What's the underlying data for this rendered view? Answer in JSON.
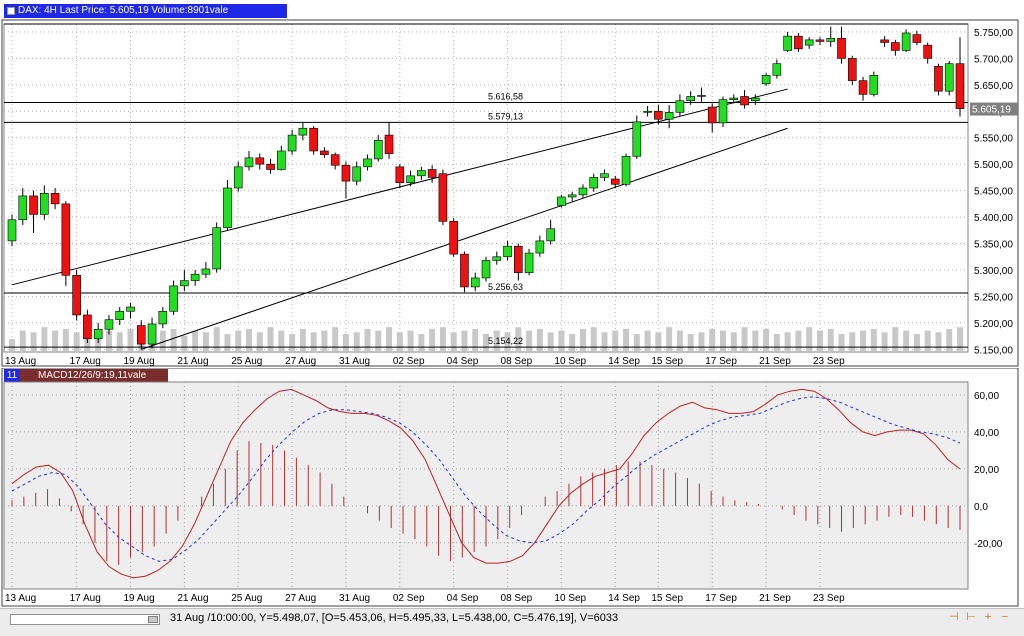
{
  "price_panel": {
    "title": "DAX: 4H Last Price: 5.605,19 Volume:8901vale",
    "last_price_label": "5.605,19",
    "level_labels": [
      "5.616,58",
      "5.579,13",
      "5.256,63",
      "5.154,22"
    ]
  },
  "macd_panel": {
    "title": "MACD12/26/9:19,11vale",
    "tab_label": "11"
  },
  "status_bar": {
    "text": "31 Aug /10:00:00, Y=5.498,07, [O=5.453,06, H=5.495,33, L=5.438,00, C=5.476,19], V=6033",
    "nav_glyphs": [
      "⊣",
      "⊢",
      "+",
      "−"
    ]
  },
  "colors": {
    "up": "#22dd22",
    "down": "#ee1111",
    "title_bar": "#1e28e6",
    "macd_tab": "#7a2d2d",
    "macd_line": "#c02020",
    "signal_line": "#2030e0",
    "plot_bg": "#eeeeee"
  },
  "chart_data": [
    {
      "type": "candlestick",
      "title": "DAX: 4H Last Price: 5.605,19 Volume:8901vale",
      "x_tick_labels": [
        "13 Aug",
        "17 Aug",
        "19 Aug",
        "21 Aug",
        "25 Aug",
        "27 Aug",
        "31 Aug",
        "02 Sep",
        "04 Sep",
        "08 Sep",
        "10 Sep",
        "14 Sep",
        "15 Sep",
        "17 Sep",
        "21 Sep",
        "23 Sep"
      ],
      "y_tick_labels": [
        "5.750,00",
        "5.700,00",
        "5.650,00",
        "5.600,00",
        "5.550,00",
        "5.500,00",
        "5.450,00",
        "5.400,00",
        "5.350,00",
        "5.300,00",
        "5.250,00",
        "5.200,00",
        "5.150,00"
      ],
      "ylim": [
        5145,
        5765
      ],
      "last_price": 5605.19,
      "horizontal_levels": [
        5616.58,
        5579.13,
        5256.63,
        5154.22
      ],
      "trendlines": [
        {
          "from": [
            0,
            5272
          ],
          "to": [
            72,
            5642
          ]
        },
        {
          "from": [
            12,
            5150
          ],
          "to": [
            72,
            5568
          ]
        }
      ],
      "candles": [
        {
          "o": 5355,
          "c": 5395,
          "h": 5405,
          "l": 5345
        },
        {
          "o": 5395,
          "c": 5440,
          "h": 5455,
          "l": 5385
        },
        {
          "o": 5440,
          "c": 5405,
          "h": 5450,
          "l": 5370
        },
        {
          "o": 5405,
          "c": 5445,
          "h": 5460,
          "l": 5395
        },
        {
          "o": 5445,
          "c": 5425,
          "h": 5455,
          "l": 5415
        },
        {
          "o": 5425,
          "c": 5290,
          "h": 5430,
          "l": 5270
        },
        {
          "o": 5290,
          "c": 5215,
          "h": 5300,
          "l": 5205
        },
        {
          "o": 5215,
          "c": 5170,
          "h": 5225,
          "l": 5162
        },
        {
          "o": 5170,
          "c": 5188,
          "h": 5200,
          "l": 5162
        },
        {
          "o": 5188,
          "c": 5206,
          "h": 5215,
          "l": 5178
        },
        {
          "o": 5206,
          "c": 5222,
          "h": 5230,
          "l": 5196
        },
        {
          "o": 5222,
          "c": 5230,
          "h": 5238,
          "l": 5208
        },
        {
          "o": 5195,
          "c": 5160,
          "h": 5205,
          "l": 5150
        },
        {
          "o": 5160,
          "c": 5198,
          "h": 5210,
          "l": 5152
        },
        {
          "o": 5198,
          "c": 5222,
          "h": 5230,
          "l": 5190
        },
        {
          "o": 5222,
          "c": 5270,
          "h": 5280,
          "l": 5215
        },
        {
          "o": 5270,
          "c": 5280,
          "h": 5300,
          "l": 5260
        },
        {
          "o": 5280,
          "c": 5292,
          "h": 5300,
          "l": 5270
        },
        {
          "o": 5292,
          "c": 5302,
          "h": 5315,
          "l": 5285
        },
        {
          "o": 5302,
          "c": 5380,
          "h": 5390,
          "l": 5295
        },
        {
          "o": 5380,
          "c": 5455,
          "h": 5470,
          "l": 5375
        },
        {
          "o": 5455,
          "c": 5495,
          "h": 5505,
          "l": 5448
        },
        {
          "o": 5495,
          "c": 5512,
          "h": 5525,
          "l": 5488
        },
        {
          "o": 5512,
          "c": 5500,
          "h": 5520,
          "l": 5490
        },
        {
          "o": 5500,
          "c": 5490,
          "h": 5510,
          "l": 5482
        },
        {
          "o": 5490,
          "c": 5525,
          "h": 5535,
          "l": 5488
        },
        {
          "o": 5525,
          "c": 5555,
          "h": 5565,
          "l": 5518
        },
        {
          "o": 5555,
          "c": 5568,
          "h": 5578,
          "l": 5545
        },
        {
          "o": 5568,
          "c": 5525,
          "h": 5572,
          "l": 5518
        },
        {
          "o": 5525,
          "c": 5518,
          "h": 5532,
          "l": 5512
        },
        {
          "o": 5518,
          "c": 5498,
          "h": 5522,
          "l": 5490
        },
        {
          "o": 5498,
          "c": 5468,
          "h": 5505,
          "l": 5435
        },
        {
          "o": 5468,
          "c": 5495,
          "h": 5505,
          "l": 5460
        },
        {
          "o": 5495,
          "c": 5510,
          "h": 5518,
          "l": 5488
        },
        {
          "o": 5510,
          "c": 5545,
          "h": 5555,
          "l": 5505
        },
        {
          "o": 5555,
          "c": 5520,
          "h": 5580,
          "l": 5510
        },
        {
          "o": 5495,
          "c": 5465,
          "h": 5500,
          "l": 5455
        },
        {
          "o": 5465,
          "c": 5478,
          "h": 5488,
          "l": 5458
        },
        {
          "o": 5478,
          "c": 5488,
          "h": 5495,
          "l": 5470
        },
        {
          "o": 5490,
          "c": 5475,
          "h": 5498,
          "l": 5465
        },
        {
          "o": 5482,
          "c": 5392,
          "h": 5490,
          "l": 5385
        },
        {
          "o": 5392,
          "c": 5330,
          "h": 5398,
          "l": 5325
        },
        {
          "o": 5330,
          "c": 5268,
          "h": 5335,
          "l": 5258
        },
        {
          "o": 5268,
          "c": 5285,
          "h": 5295,
          "l": 5260
        },
        {
          "o": 5285,
          "c": 5318,
          "h": 5325,
          "l": 5278
        },
        {
          "o": 5318,
          "c": 5325,
          "h": 5335,
          "l": 5310
        },
        {
          "o": 5325,
          "c": 5345,
          "h": 5355,
          "l": 5318
        },
        {
          "o": 5345,
          "c": 5295,
          "h": 5350,
          "l": 5280
        },
        {
          "o": 5295,
          "c": 5332,
          "h": 5340,
          "l": 5290
        },
        {
          "o": 5332,
          "c": 5355,
          "h": 5365,
          "l": 5325
        },
        {
          "o": 5355,
          "c": 5378,
          "h": 5395,
          "l": 5348
        },
        {
          "o": 5422,
          "c": 5438,
          "h": 5442,
          "l": 5418
        },
        {
          "o": 5438,
          "c": 5442,
          "h": 5448,
          "l": 5430
        },
        {
          "o": 5442,
          "c": 5455,
          "h": 5462,
          "l": 5436
        },
        {
          "o": 5455,
          "c": 5475,
          "h": 5482,
          "l": 5448
        },
        {
          "o": 5475,
          "c": 5482,
          "h": 5490,
          "l": 5468
        },
        {
          "o": 5472,
          "c": 5462,
          "h": 5478,
          "l": 5455
        },
        {
          "o": 5462,
          "c": 5515,
          "h": 5520,
          "l": 5458
        },
        {
          "o": 5515,
          "c": 5580,
          "h": 5592,
          "l": 5510
        },
        {
          "o": 5598,
          "c": 5600,
          "h": 5610,
          "l": 5590
        },
        {
          "o": 5600,
          "c": 5585,
          "h": 5612,
          "l": 5575
        },
        {
          "o": 5585,
          "c": 5598,
          "h": 5612,
          "l": 5568
        },
        {
          "o": 5598,
          "c": 5620,
          "h": 5632,
          "l": 5590
        },
        {
          "o": 5620,
          "c": 5628,
          "h": 5638,
          "l": 5612
        },
        {
          "o": 5628,
          "c": 5630,
          "h": 5645,
          "l": 5618
        },
        {
          "o": 5608,
          "c": 5578,
          "h": 5615,
          "l": 5560
        },
        {
          "o": 5578,
          "c": 5622,
          "h": 5628,
          "l": 5570
        },
        {
          "o": 5622,
          "c": 5625,
          "h": 5632,
          "l": 5615
        },
        {
          "o": 5628,
          "c": 5612,
          "h": 5640,
          "l": 5605
        },
        {
          "o": 5620,
          "c": 5625,
          "h": 5632,
          "l": 5612
        },
        {
          "o": 5652,
          "c": 5668,
          "h": 5672,
          "l": 5648
        },
        {
          "o": 5668,
          "c": 5690,
          "h": 5698,
          "l": 5662
        },
        {
          "o": 5715,
          "c": 5742,
          "h": 5750,
          "l": 5712
        },
        {
          "o": 5742,
          "c": 5718,
          "h": 5748,
          "l": 5712
        }
      ],
      "candles_end": [
        {
          "o": 5725,
          "c": 5735,
          "h": 5740,
          "l": 5718
        },
        {
          "o": 5735,
          "c": 5732,
          "h": 5740,
          "l": 5725
        },
        {
          "o": 5732,
          "c": 5738,
          "h": 5760,
          "l": 5722
        },
        {
          "o": 5738,
          "c": 5700,
          "h": 5760,
          "l": 5690
        },
        {
          "o": 5700,
          "c": 5658,
          "h": 5705,
          "l": 5650
        },
        {
          "o": 5658,
          "c": 5632,
          "h": 5665,
          "l": 5620
        },
        {
          "o": 5632,
          "c": 5668,
          "h": 5675,
          "l": 5628
        },
        {
          "o": 5735,
          "c": 5730,
          "h": 5742,
          "l": 5722
        },
        {
          "o": 5730,
          "c": 5715,
          "h": 5735,
          "l": 5705
        },
        {
          "o": 5715,
          "c": 5748,
          "h": 5755,
          "l": 5712
        },
        {
          "o": 5745,
          "c": 5730,
          "h": 5752,
          "l": 5725
        },
        {
          "o": 5725,
          "c": 5700,
          "h": 5730,
          "l": 5690
        },
        {
          "o": 5685,
          "c": 5638,
          "h": 5690,
          "l": 5630
        },
        {
          "o": 5638,
          "c": 5690,
          "h": 5695,
          "l": 5630
        },
        {
          "o": 5690,
          "c": 5605,
          "h": 5740,
          "l": 5590
        }
      ],
      "volume": [
        0.35,
        0.6,
        0.55,
        0.7,
        0.6,
        0.65,
        0.55,
        0.7,
        0.5,
        0.6,
        0.55,
        0.65,
        0.5,
        0.55,
        0.6,
        0.65,
        0.45,
        0.6,
        0.55,
        0.7,
        0.5,
        0.6,
        0.65,
        0.55,
        0.7,
        0.6,
        0.5,
        0.65,
        0.55,
        0.6,
        0.7,
        0.5,
        0.55,
        0.65,
        0.6,
        0.7,
        0.55,
        0.6,
        0.5,
        0.65,
        0.7,
        0.55,
        0.6,
        0.65,
        0.5,
        0.6,
        0.55,
        0.7,
        0.6,
        0.65,
        0.55,
        0.6,
        0.5,
        0.65,
        0.7,
        0.55,
        0.6,
        0.65,
        0.5,
        0.6,
        0.55,
        0.7,
        0.6,
        0.5,
        0.55,
        0.65,
        0.6,
        0.55,
        0.7,
        0.6,
        0.65,
        0.5,
        0.55,
        0.6,
        0.7,
        0.6,
        0.65,
        0.5,
        0.55,
        0.6,
        0.65,
        0.55,
        0.7,
        0.6,
        0.5,
        0.6,
        0.55,
        0.65,
        0.7,
        0.55
      ]
    },
    {
      "type": "line",
      "title": "MACD12/26/9:19,11vale",
      "y_tick_labels": [
        "60,00",
        "40,00",
        "20,00",
        "0,0",
        "-20,00"
      ],
      "ylim": [
        -45,
        67
      ],
      "series": [
        {
          "values": [
            12,
            17,
            21,
            22,
            18,
            8,
            -10,
            -25,
            -33,
            -37,
            -39,
            -38,
            -35,
            -30,
            -22,
            -10,
            5,
            20,
            35,
            45,
            52,
            58,
            62,
            63,
            60,
            57,
            53,
            51,
            50,
            50,
            49,
            46,
            42,
            35,
            25,
            10,
            -5,
            -20,
            -28,
            -31,
            -31,
            -30,
            -27,
            -20,
            -10,
            0,
            7,
            12,
            16,
            18,
            20,
            28,
            38,
            45,
            50,
            54,
            56,
            53,
            52,
            50,
            50,
            51,
            55,
            60,
            62,
            63,
            62,
            58,
            52,
            45,
            40,
            38,
            40,
            41,
            41,
            39,
            33,
            25,
            20
          ]
        },
        {
          "values": [
            8,
            12,
            16,
            18,
            17,
            10,
            0,
            -10,
            -17,
            -22,
            -27,
            -30,
            -29,
            -24,
            -18,
            -10,
            -2,
            6,
            15,
            25,
            33,
            40,
            46,
            50,
            52,
            52,
            51,
            50,
            48,
            45,
            40,
            33,
            25,
            15,
            5,
            -3,
            -10,
            -16,
            -19,
            -20,
            -19,
            -15,
            -10,
            -3,
            3,
            10,
            16,
            22,
            27,
            31,
            35,
            39,
            43,
            46,
            48,
            49,
            50,
            53,
            56,
            58,
            59,
            58,
            56,
            53,
            50,
            47,
            44,
            42,
            40,
            39,
            37,
            34
          ]
        }
      ],
      "histogram": [
        3,
        5,
        7,
        9,
        4,
        -3,
        -10,
        -20,
        -30,
        -32,
        -28,
        -25,
        -22,
        -15,
        -8,
        0,
        5,
        12,
        20,
        30,
        35,
        34,
        33,
        30,
        26,
        22,
        18,
        12,
        5,
        0,
        -4,
        -8,
        -12,
        -15,
        -18,
        -22,
        -27,
        -30,
        -28,
        -25,
        -22,
        -18,
        -12,
        -5,
        0,
        5,
        8,
        12,
        16,
        18,
        20,
        22,
        24,
        24,
        22,
        20,
        18,
        15,
        12,
        8,
        5,
        3,
        2,
        1,
        0,
        -2,
        -5,
        -8,
        -10,
        -12,
        -14,
        -12,
        -10,
        -8,
        -6,
        -5,
        -6,
        -8,
        -10,
        -12,
        -13
      ]
    }
  ]
}
